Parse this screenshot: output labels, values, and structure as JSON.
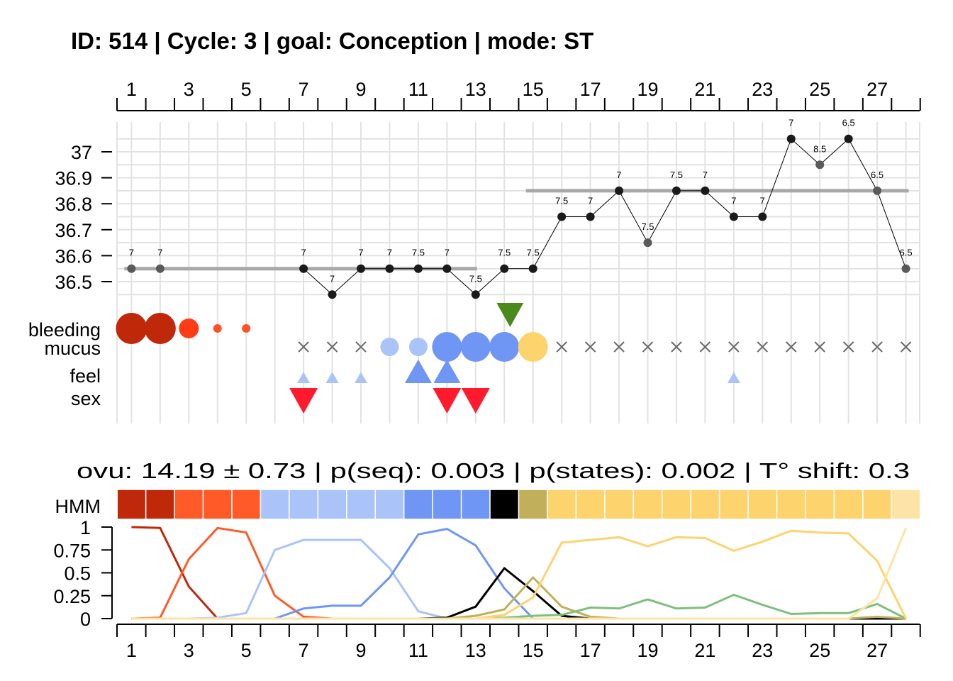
{
  "title": "ID: 514 | Cycle: 3 | goal: Conception  |  mode: ST",
  "stats_text": "ovu:  14.19  ±  0.73  | p(seq):  0.003  | p(states):  0.002  | T° shift:  0.3",
  "row_labels": {
    "bleeding": "bleeding",
    "mucus": "mucus",
    "feel": "feel",
    "sex": "sex",
    "hmm": "HMM"
  },
  "colors": {
    "temp_point": "#1a1a1a",
    "temp_point_excluded": "#5a5a5a",
    "baseline": "#a8a8a8",
    "grid": "#e2e2e2",
    "mucus_none": "#6a6a6a",
    "ovulation_marker": "#4a8a1a",
    "sex": "#ff1a2e"
  },
  "chart_data": [
    {
      "type": "line",
      "name": "temperature",
      "x_ticks": [
        1,
        3,
        5,
        7,
        9,
        11,
        13,
        15,
        17,
        19,
        21,
        23,
        25,
        27
      ],
      "x_range": [
        1,
        28
      ],
      "y_ticks": [
        36.5,
        36.6,
        36.7,
        36.8,
        36.9,
        37
      ],
      "y_tick_labels": [
        "36.5",
        "36.6",
        "36.7",
        "36.8",
        "36.9",
        "37"
      ],
      "ylim": [
        36.45,
        37.05
      ],
      "grid": true,
      "points": [
        {
          "day": 1,
          "temp": 36.55,
          "label": "7",
          "excluded": true
        },
        {
          "day": 2,
          "temp": 36.55,
          "label": "7",
          "excluded": true
        },
        {
          "day": 7,
          "temp": 36.55,
          "label": "7",
          "excluded": false
        },
        {
          "day": 8,
          "temp": 36.45,
          "label": "7",
          "excluded": false
        },
        {
          "day": 9,
          "temp": 36.55,
          "label": "7",
          "excluded": false
        },
        {
          "day": 10,
          "temp": 36.55,
          "label": "7",
          "excluded": false
        },
        {
          "day": 11,
          "temp": 36.55,
          "label": "7.5",
          "excluded": false
        },
        {
          "day": 12,
          "temp": 36.55,
          "label": "7",
          "excluded": false
        },
        {
          "day": 13,
          "temp": 36.45,
          "label": "7.5",
          "excluded": false
        },
        {
          "day": 14,
          "temp": 36.55,
          "label": "7.5",
          "excluded": false
        },
        {
          "day": 15,
          "temp": 36.55,
          "label": "7.5",
          "excluded": false
        },
        {
          "day": 16,
          "temp": 36.75,
          "label": "7.5",
          "excluded": false
        },
        {
          "day": 17,
          "temp": 36.75,
          "label": "7",
          "excluded": false
        },
        {
          "day": 18,
          "temp": 36.85,
          "label": "7",
          "excluded": false
        },
        {
          "day": 19,
          "temp": 36.65,
          "label": "7.5",
          "excluded": true
        },
        {
          "day": 20,
          "temp": 36.85,
          "label": "7.5",
          "excluded": false
        },
        {
          "day": 21,
          "temp": 36.85,
          "label": "7",
          "excluded": false
        },
        {
          "day": 22,
          "temp": 36.75,
          "label": "7",
          "excluded": false
        },
        {
          "day": 23,
          "temp": 36.75,
          "label": "7",
          "excluded": false
        },
        {
          "day": 24,
          "temp": 37.05,
          "label": "7",
          "excluded": false
        },
        {
          "day": 25,
          "temp": 36.95,
          "label": "8.5",
          "excluded": true
        },
        {
          "day": 26,
          "temp": 37.05,
          "label": "6.5",
          "excluded": false
        },
        {
          "day": 27,
          "temp": 36.85,
          "label": "6.5",
          "excluded": true
        },
        {
          "day": 28,
          "temp": 36.55,
          "label": "6.5",
          "excluded": true
        }
      ],
      "baselines": [
        {
          "from": 1,
          "to": 13.05,
          "temp": 36.55
        },
        {
          "from": 15,
          "to": 28.1,
          "temp": 36.85
        }
      ]
    },
    {
      "type": "scatter",
      "name": "observations",
      "ovulation_marker_day": 14.2,
      "bleeding": [
        {
          "day": 1,
          "level": 3,
          "color": "#c0280a"
        },
        {
          "day": 2,
          "level": 3,
          "color": "#c0280a"
        },
        {
          "day": 3,
          "level": 2,
          "color": "#ff3c14"
        },
        {
          "day": 4,
          "level": 1,
          "color": "#ff5028"
        },
        {
          "day": 5,
          "level": 1,
          "color": "#ff5028"
        }
      ],
      "mucus": [
        {
          "day": 7,
          "level": 0,
          "color": "#6a6a6a"
        },
        {
          "day": 8,
          "level": 0,
          "color": "#6a6a6a"
        },
        {
          "day": 9,
          "level": 0,
          "color": "#6a6a6a"
        },
        {
          "day": 10,
          "level": 1,
          "color": "#aac4fa"
        },
        {
          "day": 11,
          "level": 1,
          "color": "#aac4fa"
        },
        {
          "day": 12,
          "level": 2,
          "color": "#6f96f5"
        },
        {
          "day": 13,
          "level": 2,
          "color": "#6f96f5"
        },
        {
          "day": 14,
          "level": 2,
          "color": "#6f96f5"
        },
        {
          "day": 15,
          "level": 2,
          "color": "#fdd36e"
        },
        {
          "day": 16,
          "level": 0,
          "color": "#6a6a6a"
        },
        {
          "day": 17,
          "level": 0,
          "color": "#6a6a6a"
        },
        {
          "day": 18,
          "level": 0,
          "color": "#6a6a6a"
        },
        {
          "day": 19,
          "level": 0,
          "color": "#6a6a6a"
        },
        {
          "day": 20,
          "level": 0,
          "color": "#6a6a6a"
        },
        {
          "day": 21,
          "level": 0,
          "color": "#6a6a6a"
        },
        {
          "day": 22,
          "level": 0,
          "color": "#6a6a6a"
        },
        {
          "day": 23,
          "level": 0,
          "color": "#6a6a6a"
        },
        {
          "day": 24,
          "level": 0,
          "color": "#6a6a6a"
        },
        {
          "day": 25,
          "level": 0,
          "color": "#6a6a6a"
        },
        {
          "day": 26,
          "level": 0,
          "color": "#6a6a6a"
        },
        {
          "day": 27,
          "level": 0,
          "color": "#6a6a6a"
        },
        {
          "day": 28,
          "level": 0,
          "color": "#6a6a6a"
        }
      ],
      "feel": [
        {
          "day": 7,
          "level": 1,
          "color": "#aac4fa"
        },
        {
          "day": 8,
          "level": 1,
          "color": "#aac4fa"
        },
        {
          "day": 9,
          "level": 1,
          "color": "#aac4fa"
        },
        {
          "day": 11,
          "level": 2,
          "color": "#6f96f5"
        },
        {
          "day": 12,
          "level": 2,
          "color": "#6f96f5"
        },
        {
          "day": 22,
          "level": 1,
          "color": "#aac4fa"
        }
      ],
      "sex": [
        {
          "day": 7
        },
        {
          "day": 12
        },
        {
          "day": 13
        }
      ]
    },
    {
      "type": "heatmap",
      "name": "HMM",
      "days": [
        1,
        2,
        3,
        4,
        5,
        6,
        7,
        8,
        9,
        10,
        11,
        12,
        13,
        14,
        15,
        16,
        17,
        18,
        19,
        20,
        21,
        22,
        23,
        24,
        25,
        26,
        27,
        28
      ],
      "state_colors": [
        "#c0280a",
        "#c0280a",
        "#ff5a28",
        "#ff5a28",
        "#ff5a28",
        "#aac4fa",
        "#aac4fa",
        "#aac4fa",
        "#aac4fa",
        "#aac4fa",
        "#6f96f5",
        "#6f96f5",
        "#6f96f5",
        "#000000",
        "#c1b059",
        "#fdd36e",
        "#fdd36e",
        "#fdd36e",
        "#fdd36e",
        "#fdd36e",
        "#fdd36e",
        "#fdd36e",
        "#fdd36e",
        "#fdd36e",
        "#fdd36e",
        "#fdd36e",
        "#fdd36e",
        "#fde4a6"
      ]
    },
    {
      "type": "line",
      "name": "state probabilities",
      "x_ticks": [
        1,
        3,
        5,
        7,
        9,
        11,
        13,
        15,
        17,
        19,
        21,
        23,
        25,
        27
      ],
      "y_ticks": [
        0,
        0.25,
        0.5,
        0.75,
        1
      ],
      "y_tick_labels": [
        "0",
        "0.25",
        "0.5",
        "0.75",
        "1"
      ],
      "ylim": [
        0,
        1
      ],
      "series": [
        {
          "color": "#c0280a",
          "values": [
            1.0,
            0.99,
            0.35,
            0.0,
            0.0,
            0.0,
            0.0,
            0.0,
            0.0,
            0.0,
            0.0,
            0.0,
            0.0,
            0.0,
            0.0,
            0.0,
            0.0,
            0.0,
            0.0,
            0.0,
            0.0,
            0.0,
            0.0,
            0.0,
            0.0,
            0.0,
            0.0,
            0.0
          ]
        },
        {
          "color": "#ff5a28",
          "values": [
            0.0,
            0.01,
            0.65,
            0.99,
            0.94,
            0.25,
            0.02,
            0.0,
            0.0,
            0.0,
            0.0,
            0.0,
            0.0,
            0.0,
            0.0,
            0.0,
            0.0,
            0.0,
            0.0,
            0.0,
            0.0,
            0.0,
            0.0,
            0.0,
            0.0,
            0.0,
            0.0,
            0.0
          ]
        },
        {
          "color": "#aac4fa",
          "values": [
            0.0,
            0.0,
            0.0,
            0.01,
            0.06,
            0.75,
            0.86,
            0.86,
            0.86,
            0.55,
            0.08,
            0.0,
            0.0,
            0.0,
            0.0,
            0.0,
            0.0,
            0.0,
            0.0,
            0.0,
            0.0,
            0.0,
            0.0,
            0.0,
            0.0,
            0.0,
            0.0,
            0.0
          ]
        },
        {
          "color": "#6f96f5",
          "values": [
            0.0,
            0.0,
            0.0,
            0.0,
            0.0,
            0.0,
            0.11,
            0.14,
            0.14,
            0.45,
            0.92,
            0.98,
            0.8,
            0.33,
            0.0,
            0.0,
            0.0,
            0.0,
            0.0,
            0.0,
            0.0,
            0.0,
            0.0,
            0.0,
            0.0,
            0.0,
            0.0,
            0.0
          ]
        },
        {
          "color": "#000000",
          "values": [
            0.0,
            0.0,
            0.0,
            0.0,
            0.0,
            0.0,
            0.0,
            0.0,
            0.0,
            0.0,
            0.0,
            0.01,
            0.13,
            0.55,
            0.3,
            0.03,
            0.0,
            0.0,
            0.0,
            0.0,
            0.0,
            0.0,
            0.0,
            0.0,
            0.0,
            0.0,
            0.0,
            0.0
          ]
        },
        {
          "color": "#c1b059",
          "values": [
            0.0,
            0.0,
            0.0,
            0.0,
            0.0,
            0.0,
            0.0,
            0.0,
            0.0,
            0.0,
            0.0,
            0.0,
            0.03,
            0.1,
            0.45,
            0.13,
            0.02,
            0.0,
            0.0,
            0.0,
            0.0,
            0.0,
            0.0,
            0.0,
            0.0,
            0.0,
            0.02,
            0.0
          ]
        },
        {
          "color": "#7ebf7e",
          "values": [
            0.0,
            0.0,
            0.0,
            0.0,
            0.0,
            0.0,
            0.0,
            0.0,
            0.0,
            0.0,
            0.0,
            0.0,
            0.0,
            0.01,
            0.03,
            0.04,
            0.12,
            0.11,
            0.21,
            0.11,
            0.12,
            0.26,
            0.15,
            0.05,
            0.06,
            0.06,
            0.16,
            0.0
          ]
        },
        {
          "color": "#fdd36e",
          "values": [
            0.0,
            0.0,
            0.0,
            0.0,
            0.0,
            0.0,
            0.0,
            0.0,
            0.0,
            0.0,
            0.0,
            0.0,
            0.0,
            0.04,
            0.23,
            0.83,
            0.86,
            0.89,
            0.79,
            0.89,
            0.88,
            0.74,
            0.84,
            0.96,
            0.94,
            0.93,
            0.63,
            0.0
          ]
        },
        {
          "color": "#fde4a6",
          "values": [
            0.0,
            0.0,
            0.0,
            0.0,
            0.0,
            0.0,
            0.0,
            0.0,
            0.0,
            0.0,
            0.0,
            0.0,
            0.0,
            0.0,
            0.0,
            0.0,
            0.0,
            0.0,
            0.0,
            0.0,
            0.0,
            0.0,
            0.0,
            0.0,
            0.0,
            0.0,
            0.22,
            0.99
          ]
        }
      ]
    }
  ]
}
